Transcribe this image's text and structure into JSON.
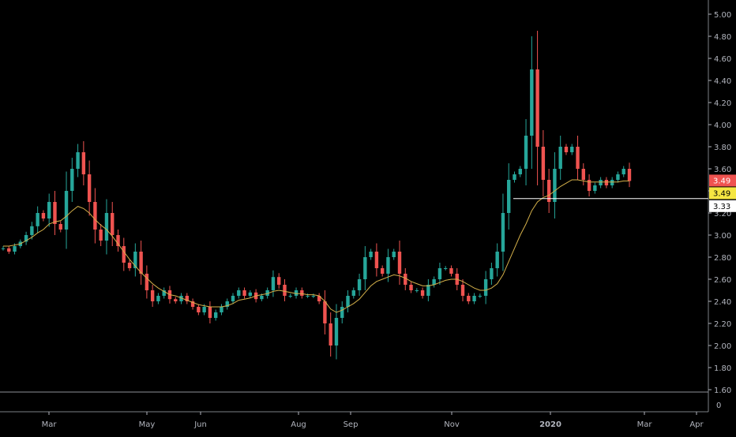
{
  "colors": {
    "background": "#000000",
    "up": "#26a69a",
    "down": "#ef5350",
    "ma": "#d4b04a",
    "axis_text": "#b2b5be",
    "axis_line": "#b2b5be",
    "hline": "#ffffff",
    "tag_last": "#ef5350",
    "tag_ma": "#f5e642",
    "tag_level": "#ffffff"
  },
  "chart_data": {
    "type": "candlestick",
    "title": "",
    "xlabel": "",
    "ylabel": "",
    "ylim": [
      1.6,
      5.0
    ],
    "y_ticks": [
      "5.00",
      "4.80",
      "4.60",
      "4.40",
      "4.20",
      "4.00",
      "3.80",
      "3.60",
      "3.40",
      "3.20",
      "3.00",
      "2.80",
      "2.60",
      "2.40",
      "2.20",
      "2.00",
      "1.80",
      "1.60"
    ],
    "x_ticks": [
      "Mar",
      "May",
      "Jun",
      "Aug",
      "Sep",
      "Nov",
      "2020",
      "Mar",
      "Apr"
    ],
    "volume_pane": {
      "y_ticks": [
        "0"
      ]
    },
    "horizontal_line": 3.33,
    "price_tags": {
      "last": "3.49",
      "ma": "3.49",
      "level": "3.33"
    },
    "series": [
      {
        "type": "close",
        "values": [
          2.88,
          2.85,
          2.9,
          2.94,
          3.0,
          3.08,
          3.2,
          3.15,
          3.3,
          3.1,
          3.05,
          3.4,
          3.6,
          3.75,
          3.55,
          3.3,
          3.05,
          2.95,
          3.2,
          3.0,
          2.9,
          2.75,
          2.7,
          2.85,
          2.65,
          2.5,
          2.4,
          2.45,
          2.5,
          2.42,
          2.4,
          2.45,
          2.4,
          2.35,
          2.3,
          2.35,
          2.25,
          2.3,
          2.35,
          2.4,
          2.45,
          2.5,
          2.45,
          2.48,
          2.42,
          2.45,
          2.5,
          2.62,
          2.55,
          2.45,
          2.45,
          2.5,
          2.45,
          2.45,
          2.45,
          2.4,
          2.2,
          2.0,
          2.25,
          2.35,
          2.45,
          2.5,
          2.6,
          2.8,
          2.85,
          2.7,
          2.65,
          2.8,
          2.85,
          2.65,
          2.55,
          2.5,
          2.5,
          2.45,
          2.55,
          2.6,
          2.7,
          2.7,
          2.65,
          2.55,
          2.45,
          2.4,
          2.45,
          2.45,
          2.6,
          2.7,
          2.85,
          3.2,
          3.5,
          3.55,
          3.6,
          3.9,
          4.5,
          3.8,
          3.5,
          3.3,
          3.6,
          3.8,
          3.75,
          3.8,
          3.6,
          3.5,
          3.4,
          3.45,
          3.5,
          3.45,
          3.5,
          3.55,
          3.6,
          3.49
        ]
      },
      {
        "type": "moving_average",
        "values": [
          2.9,
          2.9,
          2.91,
          2.92,
          2.95,
          2.98,
          3.02,
          3.05,
          3.1,
          3.12,
          3.13,
          3.17,
          3.22,
          3.26,
          3.24,
          3.2,
          3.14,
          3.09,
          3.05,
          2.99,
          2.92,
          2.85,
          2.78,
          2.72,
          2.66,
          2.61,
          2.56,
          2.52,
          2.49,
          2.46,
          2.45,
          2.43,
          2.41,
          2.39,
          2.37,
          2.36,
          2.35,
          2.35,
          2.35,
          2.36,
          2.38,
          2.41,
          2.42,
          2.43,
          2.45,
          2.46,
          2.47,
          2.49,
          2.5,
          2.49,
          2.48,
          2.47,
          2.47,
          2.46,
          2.46,
          2.45,
          2.4,
          2.33,
          2.3,
          2.32,
          2.35,
          2.38,
          2.42,
          2.48,
          2.54,
          2.58,
          2.6,
          2.62,
          2.64,
          2.63,
          2.61,
          2.58,
          2.56,
          2.54,
          2.54,
          2.55,
          2.57,
          2.59,
          2.6,
          2.6,
          2.58,
          2.55,
          2.52,
          2.5,
          2.5,
          2.52,
          2.56,
          2.64,
          2.76,
          2.88,
          3.0,
          3.1,
          3.22,
          3.3,
          3.34,
          3.36,
          3.4,
          3.44,
          3.47,
          3.5,
          3.5,
          3.49,
          3.48,
          3.48,
          3.48,
          3.48,
          3.48,
          3.48,
          3.49,
          3.49
        ]
      }
    ]
  }
}
